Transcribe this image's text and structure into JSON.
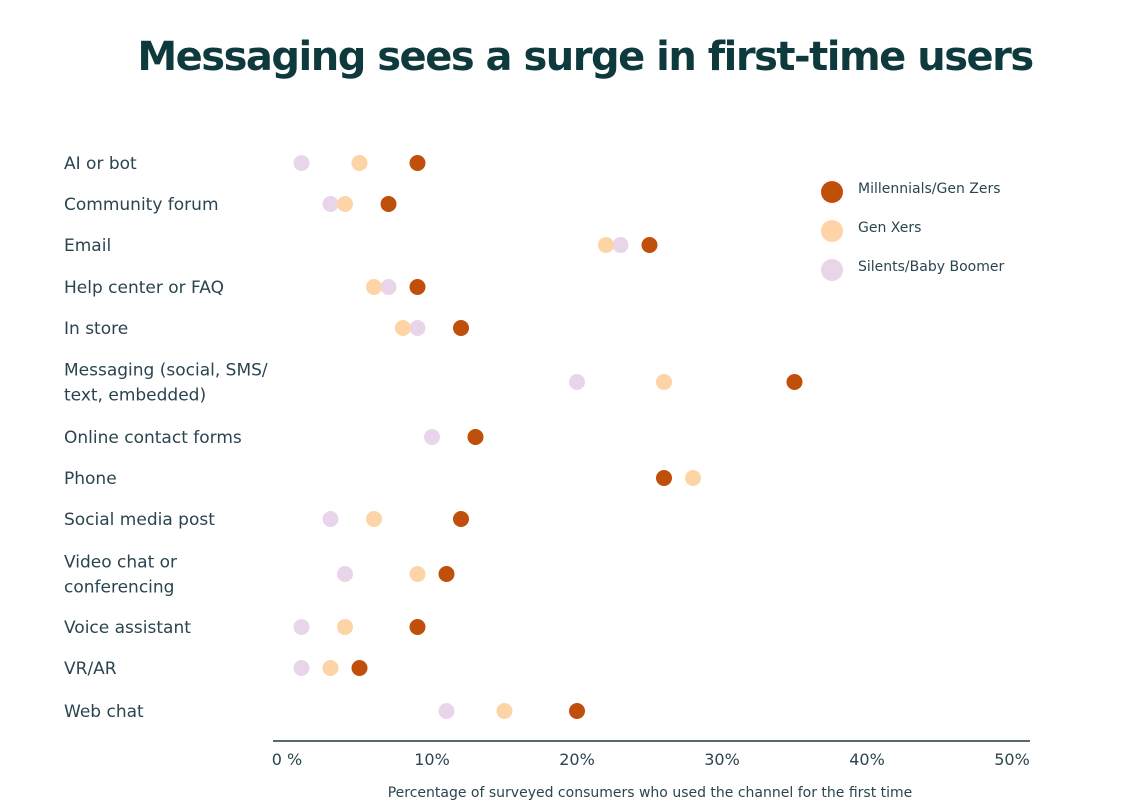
{
  "chart_data": {
    "type": "scatter",
    "title": "Messaging sees a surge in first-time users",
    "xlabel": "Percentage of surveyed consumers who used the channel for the first time",
    "ylabel": "",
    "xlim": [
      0,
      50
    ],
    "xticks": [
      0,
      10,
      20,
      30,
      40,
      50
    ],
    "xtick_labels": [
      "0 %",
      "10%",
      "20%",
      "30%",
      "40%",
      "50%"
    ],
    "legend_position": "top-right",
    "categories": [
      [
        "AI or bot"
      ],
      [
        "Community forum"
      ],
      [
        "Email"
      ],
      [
        "Help center or FAQ"
      ],
      [
        "In store"
      ],
      [
        "Messaging (social, SMS/",
        "text, embedded)"
      ],
      [
        "Online contact forms"
      ],
      [
        "Phone"
      ],
      [
        "Social media post"
      ],
      [
        "Video chat or",
        "conferencing"
      ],
      [
        "Voice assistant"
      ],
      [
        "VR/AR"
      ],
      [
        "Web chat"
      ]
    ],
    "series": [
      {
        "name": "Silents/Baby Boomer",
        "color": "#e8d5ea",
        "values": [
          1,
          3,
          23,
          7,
          9,
          20,
          10,
          26,
          3,
          4,
          1,
          1,
          11
        ]
      },
      {
        "name": "Gen Xers",
        "color": "#fdd4a6",
        "values": [
          5,
          4,
          22,
          6,
          8,
          26,
          13,
          28,
          6,
          9,
          4,
          3,
          15
        ]
      },
      {
        "name": "Millennials/Gen Zers",
        "color": "#c04f0b",
        "values": [
          9,
          7,
          25,
          9,
          12,
          35,
          13,
          26,
          12,
          11,
          9,
          5,
          20
        ]
      }
    ],
    "legend_order": [
      "Millennials/Gen Zers",
      "Gen Xers",
      "Silents/Baby Boomer"
    ]
  },
  "colors": {
    "title": "#0f3a3d",
    "axis": "#1f3a40",
    "text": "#2a4550"
  }
}
